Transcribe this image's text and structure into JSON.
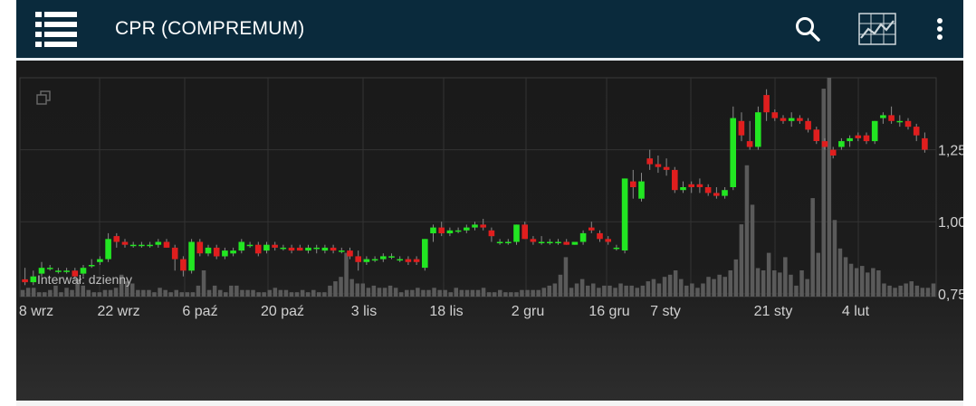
{
  "app": {
    "title": "CPR (COMPREMUM)",
    "menu_icon": "list-icon",
    "search_icon": "search-icon",
    "chart_type_icon": "chart-icon",
    "overflow_icon": "more-vert-icon"
  },
  "chart": {
    "interval_label": "Interwał: dzienny",
    "fullscreen_icon": "copy-icon",
    "x_ticks": [
      "8 wrz",
      "22 wrz",
      "6 paź",
      "20 paź",
      "3 lis",
      "18 lis",
      "2 gru",
      "16 gru",
      "7 sty",
      "21 sty",
      "4 lut"
    ],
    "y_ticks": [
      "1,25",
      "1,00",
      "0,75"
    ],
    "colors": {
      "up": "#22e622",
      "down": "#e01e1e",
      "volume": "#5a5a5a",
      "grid": "#333333",
      "axis_text": "#d0d0d0"
    }
  },
  "chart_data": {
    "type": "candlestick",
    "ylim": [
      0.74,
      1.5
    ],
    "y_ticks": [
      0.75,
      1.0,
      1.25
    ],
    "candles": [
      [
        0.8,
        0.84,
        0.78,
        0.79
      ],
      [
        0.79,
        0.83,
        0.78,
        0.81
      ],
      [
        0.82,
        0.86,
        0.81,
        0.84
      ],
      [
        0.84,
        0.85,
        0.83,
        0.84
      ],
      [
        0.83,
        0.84,
        0.82,
        0.83
      ],
      [
        0.83,
        0.84,
        0.82,
        0.83
      ],
      [
        0.83,
        0.84,
        0.8,
        0.81
      ],
      [
        0.82,
        0.85,
        0.81,
        0.84
      ],
      [
        0.85,
        0.87,
        0.84,
        0.85
      ],
      [
        0.86,
        0.88,
        0.85,
        0.87
      ],
      [
        0.87,
        0.96,
        0.86,
        0.94
      ],
      [
        0.95,
        0.96,
        0.91,
        0.93
      ],
      [
        0.93,
        0.94,
        0.91,
        0.92
      ],
      [
        0.92,
        0.93,
        0.91,
        0.92
      ],
      [
        0.92,
        0.93,
        0.91,
        0.92
      ],
      [
        0.92,
        0.93,
        0.91,
        0.92
      ],
      [
        0.92,
        0.94,
        0.91,
        0.93
      ],
      [
        0.93,
        0.94,
        0.91,
        0.91
      ],
      [
        0.91,
        0.92,
        0.83,
        0.87
      ],
      [
        0.87,
        0.88,
        0.81,
        0.83
      ],
      [
        0.83,
        0.94,
        0.82,
        0.93
      ],
      [
        0.93,
        0.94,
        0.88,
        0.89
      ],
      [
        0.89,
        0.92,
        0.88,
        0.91
      ],
      [
        0.91,
        0.92,
        0.87,
        0.88
      ],
      [
        0.88,
        0.91,
        0.87,
        0.9
      ],
      [
        0.89,
        0.91,
        0.88,
        0.9
      ],
      [
        0.9,
        0.94,
        0.89,
        0.93
      ],
      [
        0.92,
        0.93,
        0.91,
        0.92
      ],
      [
        0.92,
        0.93,
        0.88,
        0.89
      ],
      [
        0.9,
        0.93,
        0.89,
        0.92
      ],
      [
        0.92,
        0.93,
        0.9,
        0.91
      ],
      [
        0.91,
        0.92,
        0.9,
        0.91
      ],
      [
        0.91,
        0.92,
        0.89,
        0.9
      ],
      [
        0.91,
        0.92,
        0.9,
        0.9
      ],
      [
        0.9,
        0.92,
        0.89,
        0.91
      ],
      [
        0.91,
        0.92,
        0.89,
        0.91
      ],
      [
        0.9,
        0.92,
        0.89,
        0.91
      ],
      [
        0.91,
        0.92,
        0.89,
        0.9
      ],
      [
        0.9,
        0.91,
        0.89,
        0.9
      ],
      [
        0.9,
        0.91,
        0.87,
        0.88
      ],
      [
        0.88,
        0.9,
        0.83,
        0.86
      ],
      [
        0.86,
        0.88,
        0.85,
        0.87
      ],
      [
        0.87,
        0.88,
        0.86,
        0.87
      ],
      [
        0.87,
        0.89,
        0.86,
        0.88
      ],
      [
        0.88,
        0.89,
        0.87,
        0.88
      ],
      [
        0.87,
        0.88,
        0.86,
        0.87
      ],
      [
        0.87,
        0.88,
        0.85,
        0.86
      ],
      [
        0.87,
        0.88,
        0.85,
        0.86
      ],
      [
        0.84,
        0.94,
        0.83,
        0.94
      ],
      [
        0.96,
        0.99,
        0.93,
        0.98
      ],
      [
        0.98,
        1.0,
        0.95,
        0.96
      ],
      [
        0.96,
        0.98,
        0.95,
        0.97
      ],
      [
        0.97,
        0.98,
        0.96,
        0.97
      ],
      [
        0.97,
        0.99,
        0.96,
        0.98
      ],
      [
        0.98,
        1.0,
        0.97,
        0.99
      ],
      [
        0.99,
        1.01,
        0.97,
        0.98
      ],
      [
        0.97,
        0.98,
        0.93,
        0.95
      ],
      [
        0.93,
        0.94,
        0.92,
        0.93
      ],
      [
        0.93,
        0.94,
        0.92,
        0.93
      ],
      [
        0.93,
        0.99,
        0.92,
        0.99
      ],
      [
        0.99,
        1.0,
        0.94,
        0.94
      ],
      [
        0.94,
        0.95,
        0.92,
        0.93
      ],
      [
        0.93,
        0.95,
        0.92,
        0.93
      ],
      [
        0.93,
        0.94,
        0.92,
        0.93
      ],
      [
        0.93,
        0.94,
        0.92,
        0.93
      ],
      [
        0.93,
        0.94,
        0.92,
        0.92
      ],
      [
        0.92,
        0.93,
        0.92,
        0.93
      ],
      [
        0.93,
        0.97,
        0.92,
        0.96
      ],
      [
        0.98,
        1.0,
        0.96,
        0.97
      ],
      [
        0.96,
        0.97,
        0.93,
        0.94
      ],
      [
        0.94,
        0.95,
        0.92,
        0.93
      ],
      [
        0.91,
        0.92,
        0.9,
        0.91
      ],
      [
        0.9,
        1.15,
        0.89,
        1.15
      ],
      [
        1.14,
        1.18,
        1.08,
        1.12
      ],
      [
        1.08,
        1.17,
        1.07,
        1.14
      ],
      [
        1.22,
        1.25,
        1.18,
        1.2
      ],
      [
        1.2,
        1.23,
        1.17,
        1.19
      ],
      [
        1.19,
        1.22,
        1.16,
        1.18
      ],
      [
        1.18,
        1.19,
        1.1,
        1.11
      ],
      [
        1.11,
        1.14,
        1.1,
        1.12
      ],
      [
        1.13,
        1.14,
        1.1,
        1.12
      ],
      [
        1.13,
        1.15,
        1.1,
        1.12
      ],
      [
        1.12,
        1.13,
        1.09,
        1.1
      ],
      [
        1.1,
        1.12,
        1.08,
        1.09
      ],
      [
        1.09,
        1.12,
        1.08,
        1.11
      ],
      [
        1.12,
        1.4,
        1.11,
        1.36
      ],
      [
        1.35,
        1.38,
        1.28,
        1.3
      ],
      [
        1.28,
        1.35,
        1.25,
        1.26
      ],
      [
        1.26,
        1.4,
        1.25,
        1.38
      ],
      [
        1.44,
        1.46,
        1.35,
        1.38
      ],
      [
        1.38,
        1.39,
        1.35,
        1.36
      ],
      [
        1.36,
        1.37,
        1.34,
        1.35
      ],
      [
        1.35,
        1.38,
        1.33,
        1.36
      ],
      [
        1.36,
        1.37,
        1.34,
        1.35
      ],
      [
        1.35,
        1.36,
        1.31,
        1.32
      ],
      [
        1.32,
        1.33,
        1.27,
        1.28
      ],
      [
        1.28,
        1.29,
        1.25,
        1.26
      ],
      [
        1.25,
        1.26,
        1.22,
        1.23
      ],
      [
        1.26,
        1.29,
        1.25,
        1.28
      ],
      [
        1.28,
        1.3,
        1.26,
        1.29
      ],
      [
        1.3,
        1.31,
        1.28,
        1.29
      ],
      [
        1.3,
        1.31,
        1.27,
        1.28
      ],
      [
        1.28,
        1.35,
        1.27,
        1.35
      ],
      [
        1.36,
        1.38,
        1.34,
        1.37
      ],
      [
        1.37,
        1.4,
        1.34,
        1.35
      ],
      [
        1.35,
        1.37,
        1.33,
        1.35
      ],
      [
        1.35,
        1.36,
        1.32,
        1.33
      ],
      [
        1.33,
        1.34,
        1.28,
        1.3
      ],
      [
        1.29,
        1.31,
        1.24,
        1.25
      ]
    ],
    "volume": [
      3,
      4,
      4,
      2,
      2,
      3,
      5,
      2,
      4,
      3,
      8,
      5,
      3,
      2,
      2,
      3,
      3,
      4,
      10,
      7,
      6,
      3,
      3,
      3,
      2,
      4,
      3,
      2,
      3,
      2,
      2,
      2,
      5,
      12,
      3,
      5,
      3,
      2,
      5,
      5,
      3,
      3,
      3,
      2,
      2,
      3,
      4,
      3,
      3,
      2,
      2,
      3,
      2,
      3,
      2,
      2,
      5,
      7,
      9,
      20,
      8,
      6,
      6,
      4,
      5,
      4,
      4,
      5,
      4,
      2,
      3,
      3,
      4,
      3,
      3,
      4,
      3,
      3,
      2,
      4,
      3,
      3,
      3,
      3,
      4,
      2,
      2,
      3,
      2,
      2,
      2,
      3,
      3,
      3,
      3,
      4,
      5,
      6,
      10,
      18,
      4,
      6,
      8,
      5,
      6,
      4,
      5,
      5,
      4,
      6,
      5,
      5,
      4,
      5,
      7,
      8,
      6,
      9,
      10,
      12,
      8,
      5,
      6,
      4,
      6,
      9,
      8,
      10,
      9,
      12,
      17,
      33,
      60,
      42,
      13,
      12,
      20,
      12,
      11,
      18,
      10,
      5,
      12,
      8,
      45,
      20,
      95,
      100,
      35,
      22,
      18,
      15,
      13,
      14,
      11,
      13,
      12,
      6,
      5,
      4,
      5,
      6,
      7,
      5,
      4,
      4,
      6
    ]
  }
}
